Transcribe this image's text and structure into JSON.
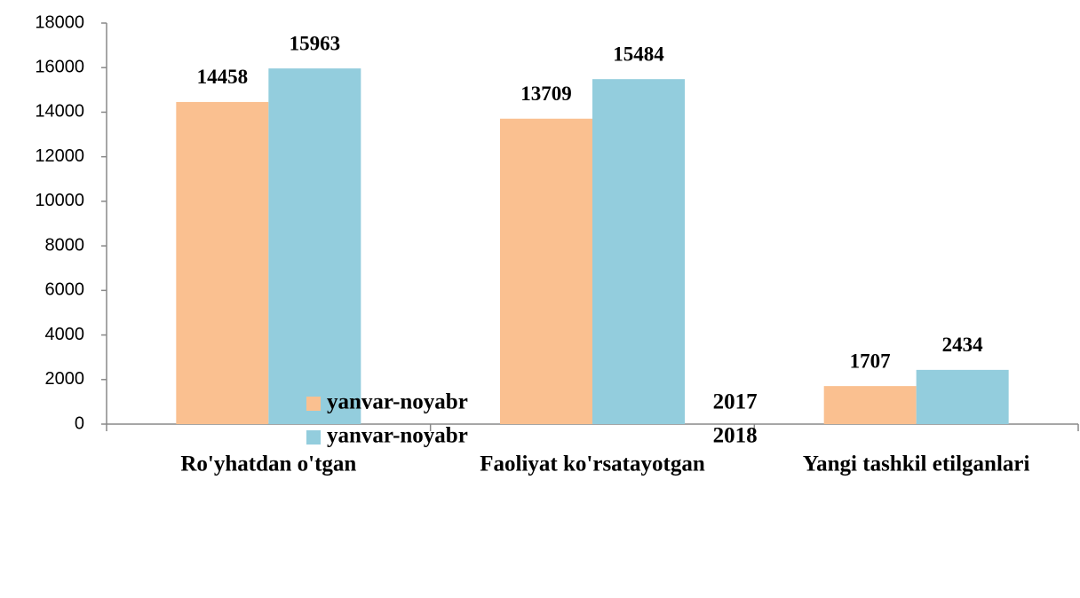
{
  "chart_data": {
    "type": "bar",
    "categories": [
      "Ro'yhatdan o'tgan",
      "Faoliyat ko'rsatayotgan",
      "Yangi tashkil etilganlari"
    ],
    "series": [
      {
        "name": "yanvar-noyabr 2017",
        "color": "#fac090",
        "values": [
          14458,
          13709,
          1707
        ]
      },
      {
        "name": "yanvar-noyabr 2018",
        "color": "#93cddd",
        "values": [
          15963,
          15484,
          2434
        ]
      }
    ],
    "ylim": [
      0,
      18000
    ],
    "yticks": [
      0,
      2000,
      4000,
      6000,
      8000,
      10000,
      12000,
      14000,
      16000,
      18000
    ],
    "grid": false,
    "legend": "bottom"
  }
}
